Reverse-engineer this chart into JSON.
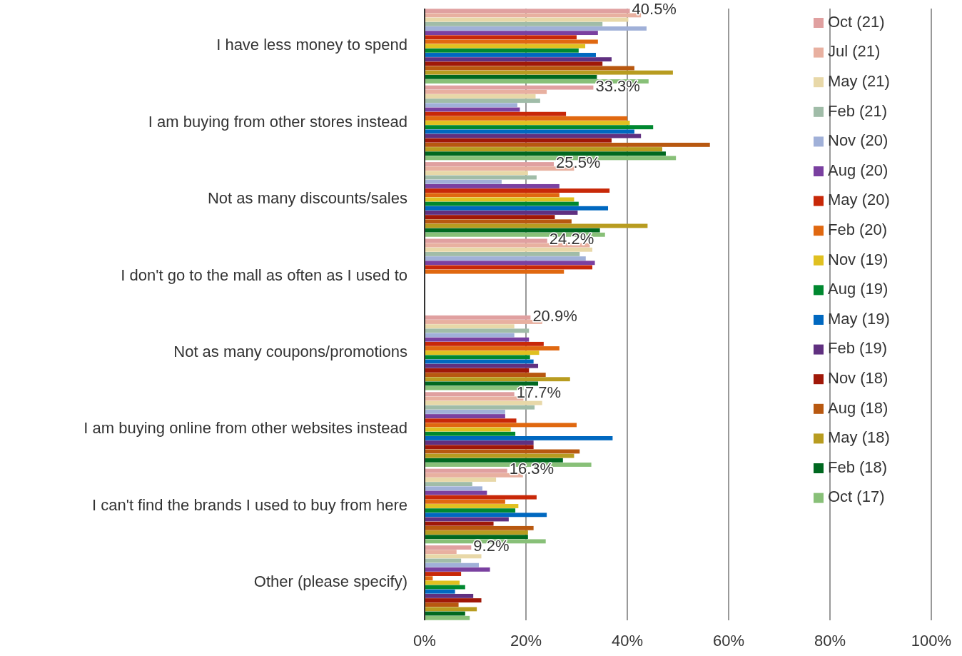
{
  "chart_data": {
    "type": "bar",
    "orientation": "horizontal",
    "categories": [
      "I have less money to spend",
      "I am buying from other stores instead",
      "Not as many discounts/sales",
      "I don't go to the mall as often as I used to",
      "Not as many coupons/promotions",
      "I am buying online from other websites instead",
      "I can't find the brands I used to buy from here",
      "Other (please specify)"
    ],
    "series": [
      {
        "name": "Oct (21)",
        "color": "#e0a0a0",
        "values": [
          40.5,
          33.3,
          25.5,
          24.2,
          20.9,
          17.7,
          16.3,
          9.2
        ],
        "value_labels": [
          "40.5%",
          "33.3%",
          "25.5%",
          "24.2%",
          "20.9%",
          "17.7%",
          "16.3%",
          "9.2%"
        ]
      },
      {
        "name": "Jul (21)",
        "color": "#e8b0a0",
        "values": [
          42.7,
          24.1,
          29.5,
          32.6,
          23.2,
          19.5,
          19.4,
          6.3
        ]
      },
      {
        "name": "May (21)",
        "color": "#e8d8a8",
        "values": [
          40.2,
          21.9,
          20.4,
          33.1,
          17.7,
          23.2,
          14.1,
          11.2
        ]
      },
      {
        "name": "Feb (21)",
        "color": "#a0bca8",
        "values": [
          35.1,
          22.8,
          22.1,
          30.6,
          20.6,
          21.7,
          9.4,
          7.2
        ]
      },
      {
        "name": "Nov (20)",
        "color": "#a0b0d8",
        "values": [
          43.8,
          18.3,
          15.2,
          31.8,
          17.7,
          15.9,
          11.4,
          10.7
        ]
      },
      {
        "name": "Aug (20)",
        "color": "#7a40a0",
        "values": [
          34.2,
          18.8,
          26.6,
          33.6,
          20.6,
          15.9,
          12.3,
          12.9
        ]
      },
      {
        "name": "May (20)",
        "color": "#c82808",
        "values": [
          30.0,
          27.9,
          36.5,
          33.1,
          23.5,
          18.1,
          22.1,
          7.2
        ]
      },
      {
        "name": "Feb (20)",
        "color": "#e06810",
        "values": [
          34.2,
          40.0,
          26.6,
          27.5,
          26.6,
          30.0,
          15.9,
          1.6
        ]
      },
      {
        "name": "Nov (19)",
        "color": "#e0c020",
        "values": [
          31.7,
          40.5,
          29.5,
          null,
          22.6,
          17.0,
          18.5,
          6.9
        ]
      },
      {
        "name": "Aug (19)",
        "color": "#008830",
        "values": [
          30.4,
          45.1,
          30.4,
          null,
          20.8,
          17.9,
          17.9,
          8.0
        ]
      },
      {
        "name": "May (19)",
        "color": "#0068c0",
        "values": [
          33.8,
          41.4,
          36.2,
          null,
          21.5,
          37.1,
          24.1,
          6.0
        ]
      },
      {
        "name": "Feb (19)",
        "color": "#603080",
        "values": [
          36.9,
          42.7,
          30.2,
          null,
          22.4,
          21.5,
          16.6,
          9.6
        ]
      },
      {
        "name": "Nov (18)",
        "color": "#a01808",
        "values": [
          35.1,
          36.9,
          25.7,
          null,
          20.6,
          21.5,
          13.6,
          11.2
        ]
      },
      {
        "name": "Aug (18)",
        "color": "#b85810",
        "values": [
          41.4,
          56.3,
          29.0,
          null,
          23.9,
          30.6,
          21.5,
          6.7
        ]
      },
      {
        "name": "May (18)",
        "color": "#b89c20",
        "values": [
          49.0,
          46.9,
          44.0,
          null,
          28.7,
          29.5,
          20.4,
          10.3
        ]
      },
      {
        "name": "Feb (18)",
        "color": "#006820",
        "values": [
          34.0,
          47.6,
          34.6,
          null,
          22.4,
          27.3,
          20.4,
          8.0
        ]
      },
      {
        "name": "Oct (17)",
        "color": "#88c078",
        "values": [
          44.2,
          49.6,
          35.6,
          null,
          19.5,
          32.9,
          23.9,
          8.9
        ]
      }
    ],
    "xlim": [
      0,
      100
    ],
    "xticks": [
      {
        "value": 0,
        "label": "0%"
      },
      {
        "value": 20,
        "label": "20%"
      },
      {
        "value": 40,
        "label": "40%"
      },
      {
        "value": 60,
        "label": "60%"
      },
      {
        "value": 80,
        "label": "80%"
      },
      {
        "value": 100,
        "label": "100%"
      }
    ],
    "grid": "x",
    "legend": "right"
  }
}
